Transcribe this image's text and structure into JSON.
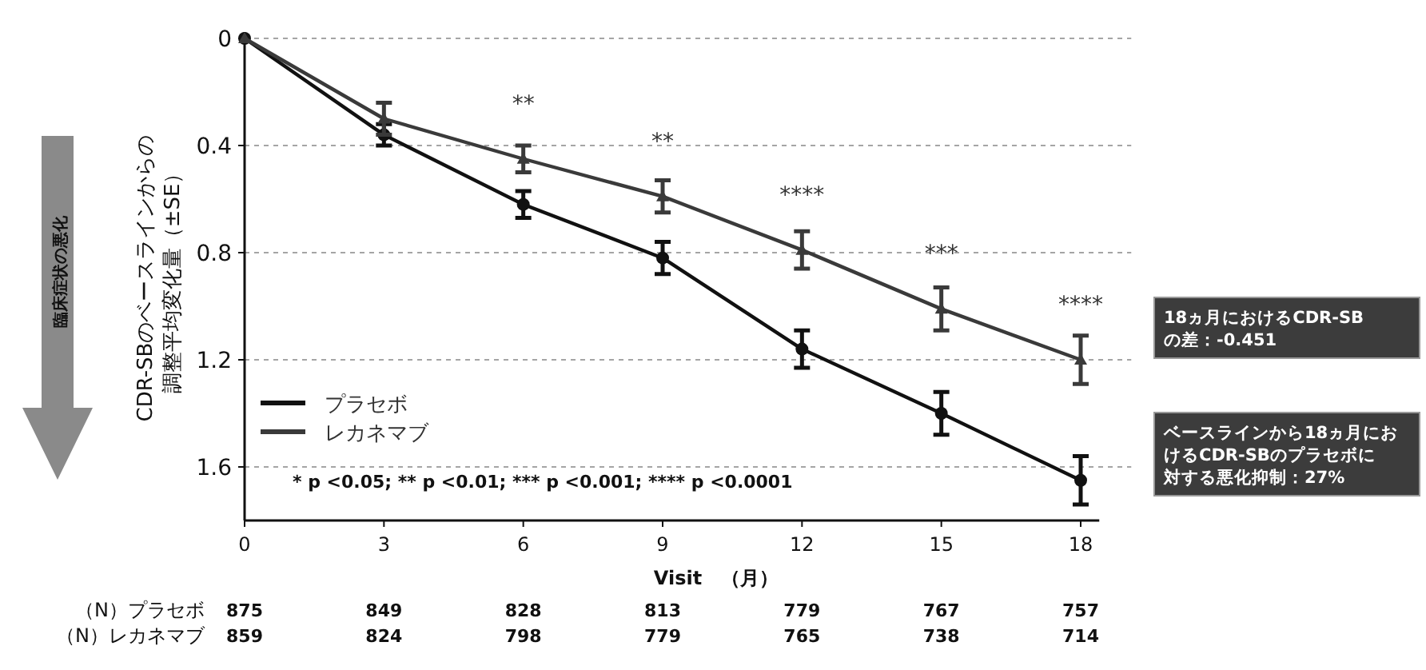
{
  "chart_data": {
    "type": "line",
    "xlabel": "Visit　（月）",
    "ylabel": "CDR-SBのベースラインからの調整平均変化量（±SE）",
    "x": [
      0,
      3,
      6,
      9,
      12,
      15,
      18
    ],
    "xlim": [
      0,
      18.4
    ],
    "xticks": [
      0,
      3,
      6,
      9,
      12,
      15,
      18
    ],
    "ylim": [
      1.8,
      0
    ],
    "yticks": [
      0,
      {
        "value": 0.4,
        "label": "0.4"
      },
      {
        "value": 0.8,
        "label": "0.8"
      },
      {
        "value": 1.2,
        "label": "1.2"
      },
      {
        "value": 1.6,
        "label": "1.6"
      }
    ],
    "grid": "y",
    "legend": "bottom left",
    "series": [
      {
        "name": "プラセボ",
        "color": "#111111",
        "marker": "circle",
        "values": [
          0,
          0.36,
          0.62,
          0.82,
          1.16,
          1.4,
          1.65
        ],
        "errors": [
          null,
          0.04,
          0.05,
          0.06,
          0.07,
          0.08,
          0.09
        ]
      },
      {
        "name": "レカネマブ",
        "color": "#3a3a3a",
        "marker": "triangle",
        "values": [
          0,
          0.3,
          0.45,
          0.59,
          0.79,
          1.01,
          1.2
        ],
        "errors": [
          null,
          0.06,
          0.05,
          0.06,
          0.07,
          0.08,
          0.09
        ]
      }
    ],
    "annotations": [
      "* p <0.05; ** p <0.01; *** p <0.001; **** p <0.0001",
      "臨床症状の悪化",
      "18ヵ月におけるCDR-SBの差：-0.451",
      "ベースラインから18ヵ月におけるCDR-SBのプラセボに対する悪化抑制：27%",
      "（N）プラセボ",
      "（N）レカネマブ",
      "**",
      "**",
      "****",
      "***",
      "****",
      "875",
      "849",
      "828",
      "813",
      "779",
      "767",
      "757",
      "859",
      "824",
      "798",
      "779",
      "765",
      "738",
      "714"
    ]
  }
}
